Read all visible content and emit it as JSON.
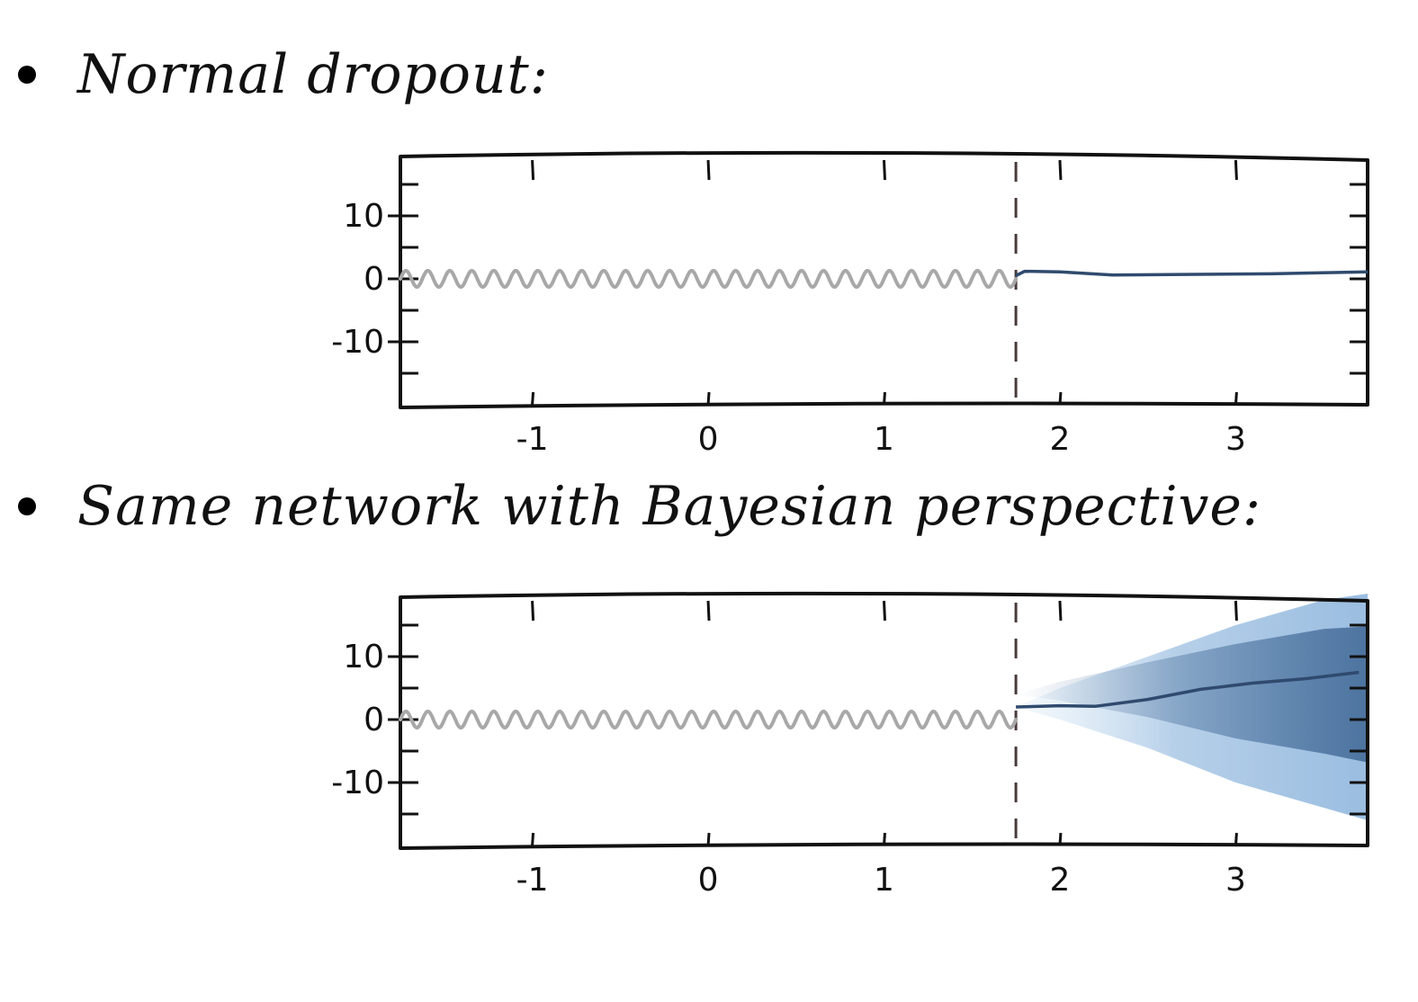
{
  "bullets": {
    "first": "Normal dropout:",
    "second": "Same network with Bayesian perspective:"
  },
  "colors": {
    "ink": "#111111",
    "training_curve": "#a8a8a8",
    "prediction_curve": "#2f4a6e",
    "divider": "#4a3a3a",
    "uncertainty_light": "#bcd9f0",
    "uncertainty_mid": "#8fb6dd",
    "uncertainty_dark": "#3f6794"
  },
  "chart_data": [
    {
      "type": "line",
      "x_ticks": [
        "-1",
        "0",
        "1",
        "2",
        "3"
      ],
      "y_ticks": [
        "10",
        "0",
        "-10"
      ],
      "xlim": [
        -1.75,
        3.75
      ],
      "ylim": [
        -20,
        20
      ],
      "grid": false,
      "divider_x": 1.75,
      "series": [
        {
          "role": "training",
          "x_start": -1.75,
          "x_end": 1.75,
          "mean": 0,
          "amplitude": 1.3,
          "wavelength": 0.125
        },
        {
          "role": "prediction",
          "x": [
            1.75,
            1.8,
            2.0,
            2.3,
            2.7,
            3.2,
            3.75
          ],
          "y": [
            0.5,
            1.2,
            1.1,
            0.6,
            0.7,
            0.8,
            1.1
          ]
        }
      ]
    },
    {
      "type": "line",
      "x_ticks": [
        "-1",
        "0",
        "1",
        "2",
        "3"
      ],
      "y_ticks": [
        "10",
        "0",
        "-10"
      ],
      "xlim": [
        -1.75,
        3.75
      ],
      "ylim": [
        -20,
        20
      ],
      "grid": false,
      "divider_x": 1.75,
      "series": [
        {
          "role": "training",
          "x_start": -1.75,
          "x_end": 1.75,
          "mean": 0,
          "amplitude": 1.3,
          "wavelength": 0.125
        },
        {
          "role": "prediction",
          "x": [
            1.75,
            2.0,
            2.2,
            2.5,
            2.8,
            3.1,
            3.4,
            3.7
          ],
          "y": [
            2.0,
            2.2,
            2.1,
            3.2,
            4.8,
            5.8,
            6.5,
            7.5
          ]
        },
        {
          "role": "uncertainty",
          "x": [
            1.75,
            2.0,
            2.5,
            3.0,
            3.5,
            3.75
          ],
          "lower": [
            2.0,
            0.0,
            -4.5,
            -10.0,
            -14.0,
            -16.0
          ],
          "upper": [
            2.0,
            5.0,
            10.0,
            15.0,
            19.0,
            20.0
          ]
        }
      ]
    }
  ]
}
